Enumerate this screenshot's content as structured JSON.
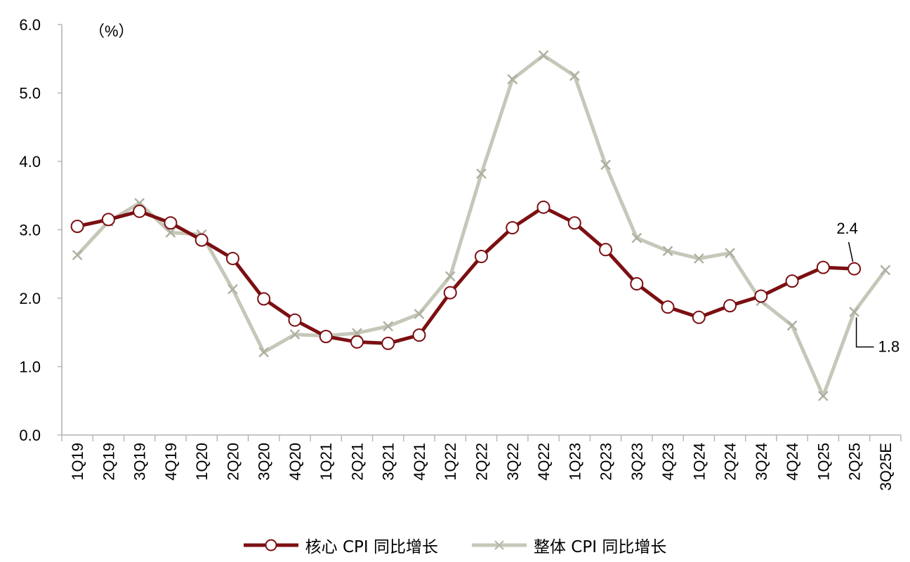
{
  "chart_data": {
    "type": "line",
    "unit_label": "（%）",
    "ylim": [
      0,
      6
    ],
    "yticks": [
      "0.0",
      "1.0",
      "2.0",
      "3.0",
      "4.0",
      "5.0",
      "6.0"
    ],
    "categories": [
      "1Q19",
      "2Q19",
      "3Q19",
      "4Q19",
      "1Q20",
      "2Q20",
      "3Q20",
      "4Q20",
      "1Q21",
      "2Q21",
      "3Q21",
      "4Q21",
      "1Q22",
      "2Q22",
      "3Q22",
      "4Q22",
      "1Q23",
      "2Q23",
      "3Q23",
      "4Q23",
      "1Q24",
      "2Q24",
      "3Q24",
      "4Q24",
      "1Q25",
      "2Q25",
      "3Q25E"
    ],
    "series": [
      {
        "name": "核心 CPI 同比增长",
        "color": "#7b0f12",
        "marker": "circle",
        "values": [
          3.05,
          3.15,
          3.27,
          3.1,
          2.85,
          2.58,
          1.99,
          1.68,
          1.44,
          1.36,
          1.34,
          1.46,
          2.08,
          2.61,
          3.03,
          3.33,
          3.1,
          2.71,
          2.21,
          1.87,
          1.72,
          1.89,
          2.03,
          2.25,
          2.45,
          2.43,
          null
        ]
      },
      {
        "name": "整体 CPI 同比增长",
        "color": "#c5c7b8",
        "marker": "x",
        "values": [
          2.63,
          3.12,
          3.39,
          2.96,
          2.93,
          2.13,
          1.21,
          1.47,
          1.45,
          1.49,
          1.59,
          1.77,
          2.32,
          3.82,
          5.2,
          5.55,
          5.25,
          3.95,
          2.88,
          2.69,
          2.58,
          2.66,
          1.96,
          1.6,
          0.57,
          1.8,
          2.41
        ]
      }
    ],
    "annotations": [
      {
        "text": "2.4",
        "series": 0,
        "index": 25
      },
      {
        "text": "1.8",
        "series": 1,
        "index": 25
      }
    ],
    "grid": false,
    "legend_position": "bottom"
  }
}
